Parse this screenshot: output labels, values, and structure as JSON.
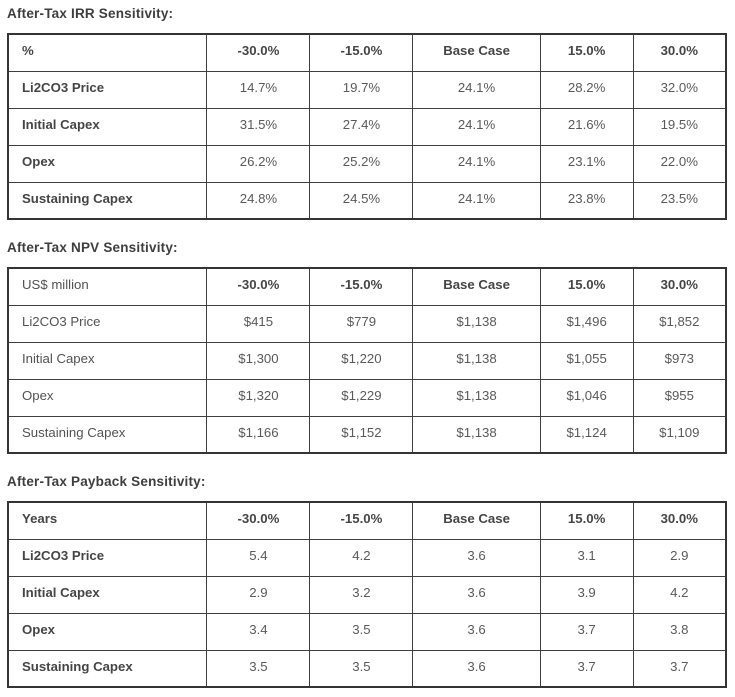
{
  "colors": {
    "background": "#ffffff",
    "border_outer": "#343434",
    "border_inner": "#3f3f3f",
    "title_text": "#3e3e3e",
    "label_text": "#454545",
    "value_text": "#595959"
  },
  "sections": [
    {
      "title": "After-Tax IRR Sensitivity:",
      "unit_label": "%",
      "columns": [
        "-30.0%",
        "-15.0%",
        "Base Case",
        "15.0%",
        "30.0%"
      ],
      "rows": [
        {
          "label": "Li2CO3 Price",
          "values": [
            "14.7%",
            "19.7%",
            "24.1%",
            "28.2%",
            "32.0%"
          ]
        },
        {
          "label": "Initial Capex",
          "values": [
            "31.5%",
            "27.4%",
            "24.1%",
            "21.6%",
            "19.5%"
          ]
        },
        {
          "label": "Opex",
          "values": [
            "26.2%",
            "25.2%",
            "24.1%",
            "23.1%",
            "22.0%"
          ]
        },
        {
          "label": "Sustaining Capex",
          "values": [
            "24.8%",
            "24.5%",
            "24.1%",
            "23.8%",
            "23.5%"
          ]
        }
      ]
    },
    {
      "title": "After-Tax NPV Sensitivity:",
      "unit_label": "US$ million",
      "columns": [
        "-30.0%",
        "-15.0%",
        "Base Case",
        "15.0%",
        "30.0%"
      ],
      "rows": [
        {
          "label": "Li2CO3 Price",
          "values": [
            "$415",
            "$779",
            "$1,138",
            "$1,496",
            "$1,852"
          ]
        },
        {
          "label": "Initial Capex",
          "values": [
            "$1,300",
            "$1,220",
            "$1,138",
            "$1,055",
            "$973"
          ]
        },
        {
          "label": "Opex",
          "values": [
            "$1,320",
            "$1,229",
            "$1,138",
            "$1,046",
            "$955"
          ]
        },
        {
          "label": "Sustaining Capex",
          "values": [
            "$1,166",
            "$1,152",
            "$1,138",
            "$1,124",
            "$1,109"
          ]
        }
      ]
    },
    {
      "title": "After-Tax Payback Sensitivity:",
      "unit_label": "Years",
      "columns": [
        "-30.0%",
        "-15.0%",
        "Base Case",
        "15.0%",
        "30.0%"
      ],
      "rows": [
        {
          "label": "Li2CO3 Price",
          "values": [
            "5.4",
            "4.2",
            "3.6",
            "3.1",
            "2.9"
          ]
        },
        {
          "label": "Initial Capex",
          "values": [
            "2.9",
            "3.2",
            "3.6",
            "3.9",
            "4.2"
          ]
        },
        {
          "label": "Opex",
          "values": [
            "3.4",
            "3.5",
            "3.6",
            "3.7",
            "3.8"
          ]
        },
        {
          "label": "Sustaining Capex",
          "values": [
            "3.5",
            "3.5",
            "3.6",
            "3.7",
            "3.7"
          ]
        }
      ]
    }
  ]
}
